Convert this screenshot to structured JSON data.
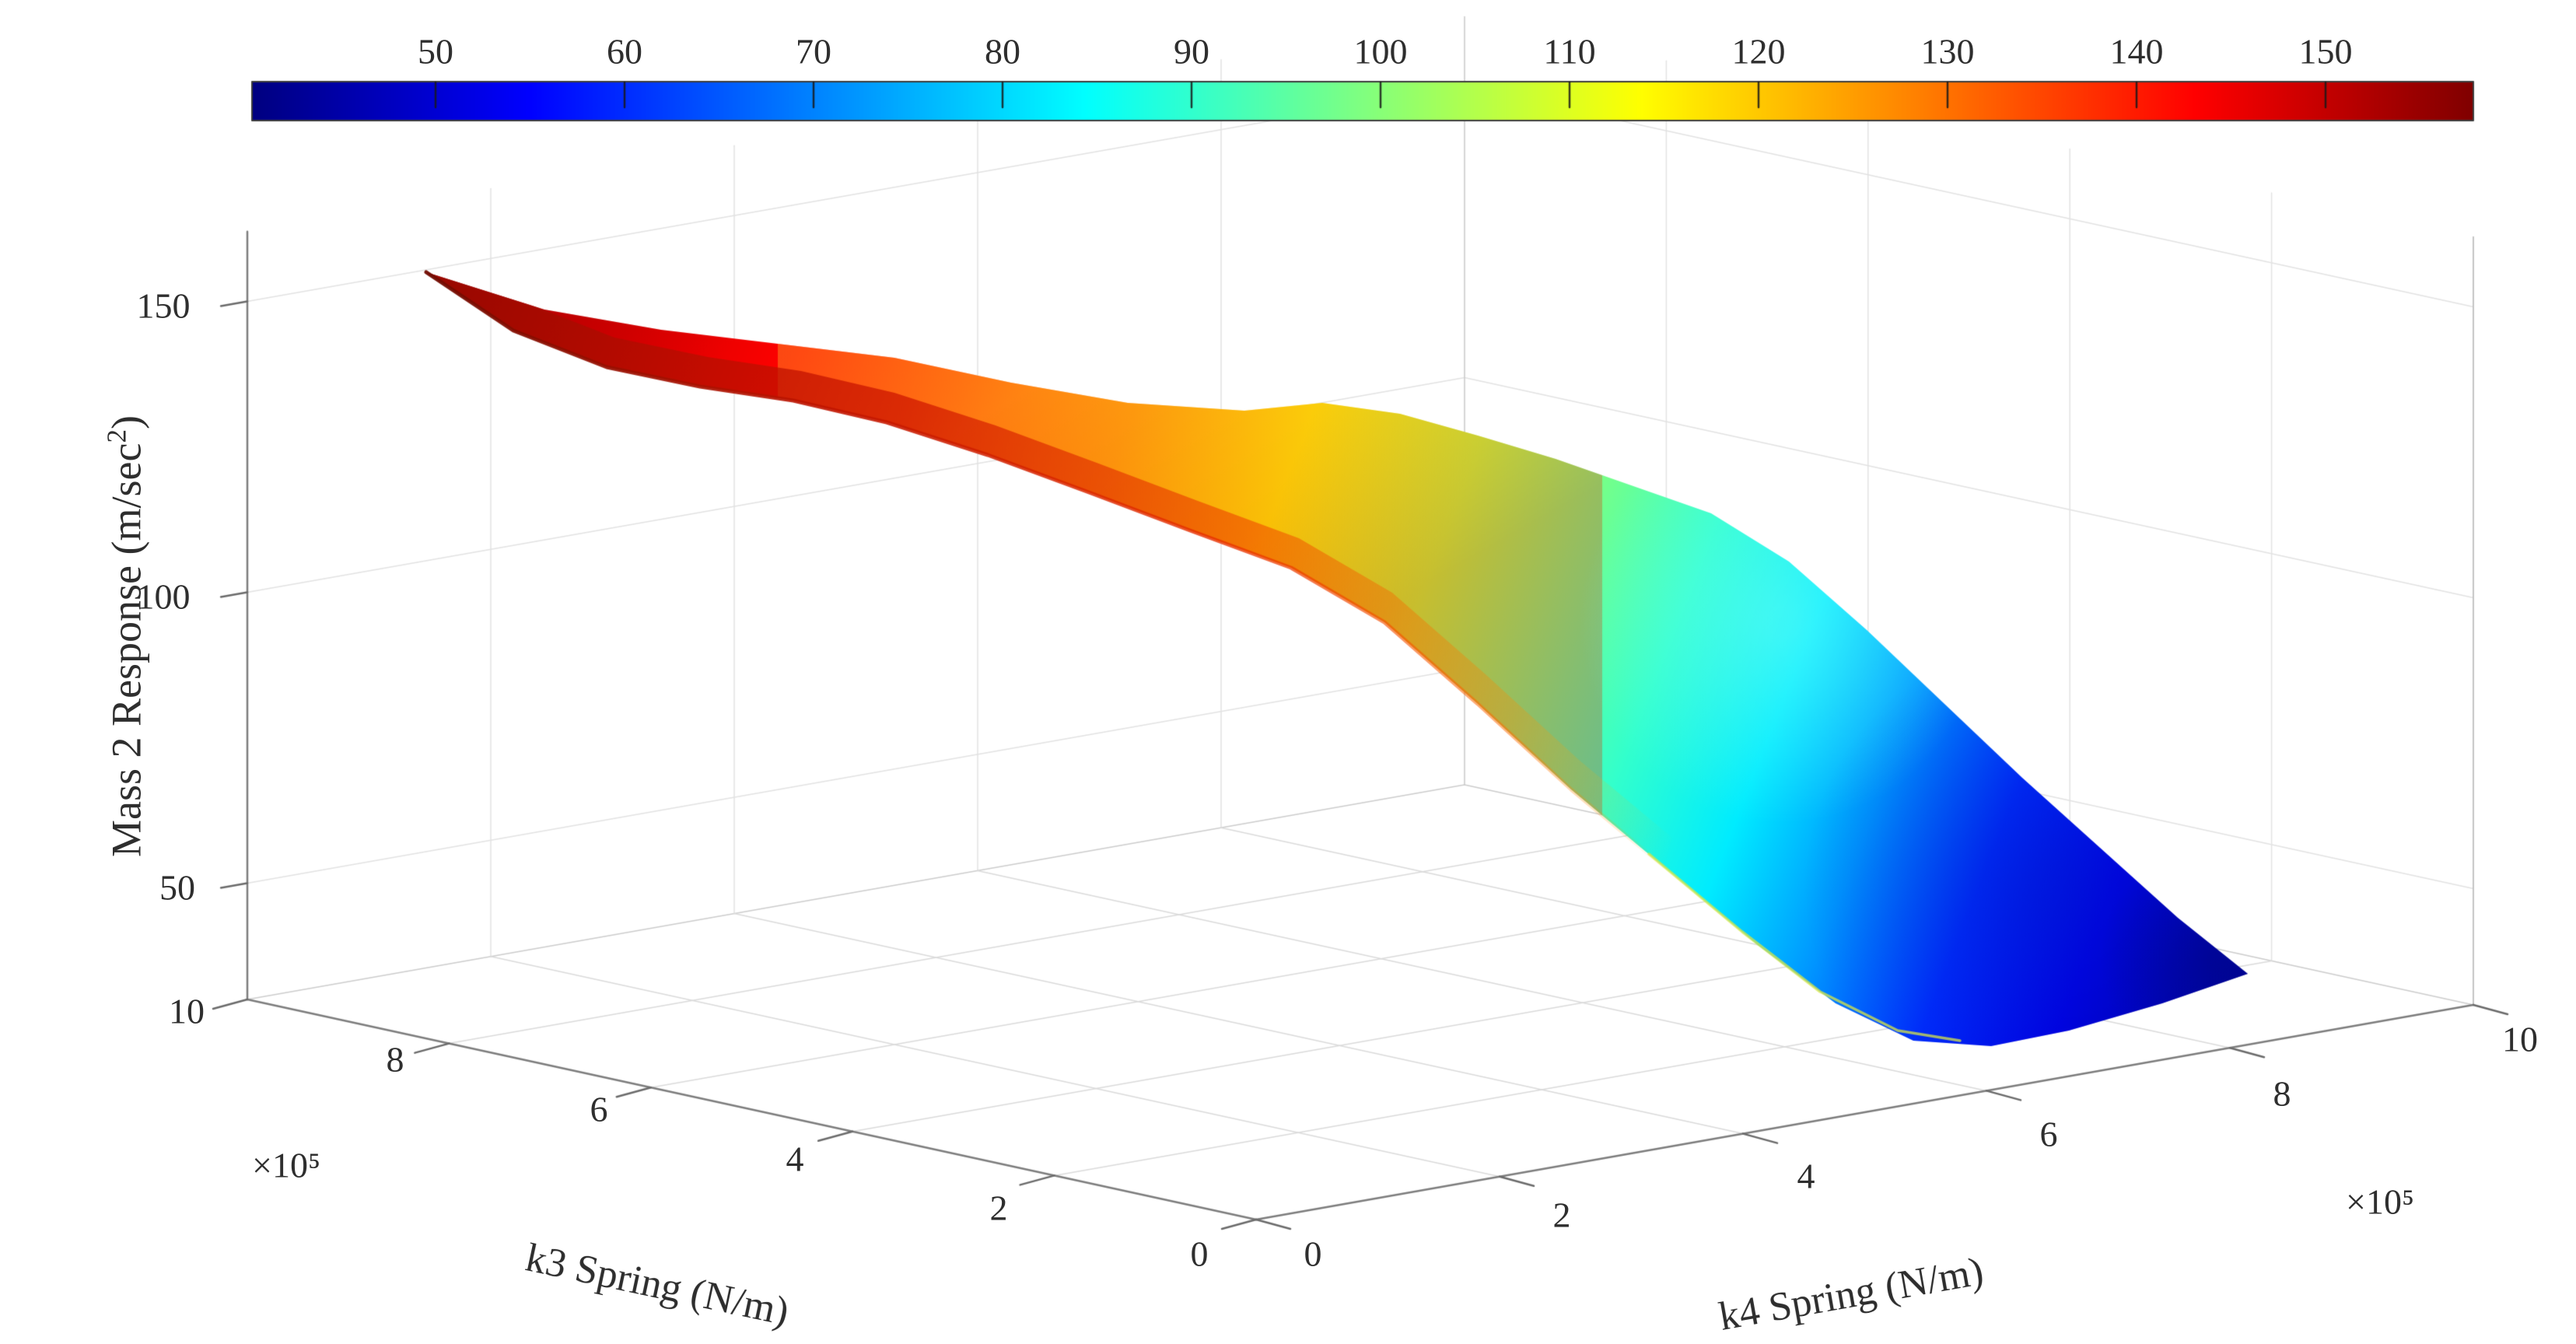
{
  "figure": {
    "background": "#ffffff"
  },
  "colorbar": {
    "orientation": "horizontal",
    "colormap": "jet",
    "value_min": 40,
    "value_max": 158,
    "tick_labels": [
      "50",
      "60",
      "70",
      "80",
      "90",
      "100",
      "110",
      "120",
      "130",
      "140",
      "150"
    ],
    "tick_values": [
      50,
      60,
      70,
      80,
      90,
      100,
      110,
      120,
      130,
      140,
      150
    ]
  },
  "axes": {
    "z": {
      "label_prefix": "Mass 2 Response (m/sec",
      "label_sup": "2",
      "label_suffix": ")",
      "tick_labels": [
        "150",
        "100",
        "50"
      ],
      "tick_values": [
        150,
        100,
        50
      ]
    },
    "k3": {
      "label": "k3 Spring (N/m)",
      "exponent_label": "×10⁵",
      "tick_labels": [
        "10",
        "8",
        "6",
        "4",
        "2",
        "0"
      ],
      "tick_values": [
        10,
        8,
        6,
        4,
        2,
        0
      ]
    },
    "k4": {
      "label": "k4 Spring (N/m)",
      "exponent_label": "×10⁵",
      "tick_labels": [
        "0",
        "2",
        "4",
        "6",
        "8",
        "10"
      ],
      "tick_values": [
        0,
        2,
        4,
        6,
        8,
        10
      ]
    }
  },
  "chart_data": {
    "type": "surface",
    "title": "",
    "xlabel": "k4 Spring (N/m)",
    "ylabel": "k3 Spring (N/m)",
    "zlabel": "Mass 2 Response (m/sec^2)",
    "axis_unit_multiplier": 100000,
    "xlim_1e5": [
      0,
      10
    ],
    "ylim_1e5": [
      0,
      10
    ],
    "zlim": [
      30,
      160
    ],
    "x_ticks_1e5": [
      0,
      2,
      4,
      6,
      8,
      10
    ],
    "y_ticks_1e5": [
      10,
      8,
      6,
      4,
      2,
      0
    ],
    "z_ticks": [
      50,
      100,
      150
    ],
    "grid": true,
    "colormap": "jet",
    "caxis": [
      40,
      158
    ],
    "colorbar_ticks": [
      50,
      60,
      70,
      80,
      90,
      100,
      110,
      120,
      130,
      140,
      150
    ],
    "legend": "none",
    "surface_estimated_from_pixels": true,
    "k3_sample_values_1e5": [
      0,
      2,
      4,
      6,
      8,
      10
    ],
    "k4_sample_values_1e5": [
      1,
      2.5,
      4,
      5.5,
      7,
      8.5
    ],
    "z_estimated": [
      [
        105,
        92,
        75,
        62,
        50,
        42
      ],
      [
        118,
        102,
        85,
        70,
        57,
        48
      ],
      [
        128,
        112,
        95,
        80,
        68,
        60
      ],
      [
        138,
        124,
        108,
        94,
        82,
        75
      ],
      [
        146,
        134,
        120,
        107,
        96,
        88
      ],
      [
        153,
        143,
        128,
        114,
        103,
        96
      ]
    ],
    "z_max_estimate": 155,
    "z_min_estimate": 42
  }
}
